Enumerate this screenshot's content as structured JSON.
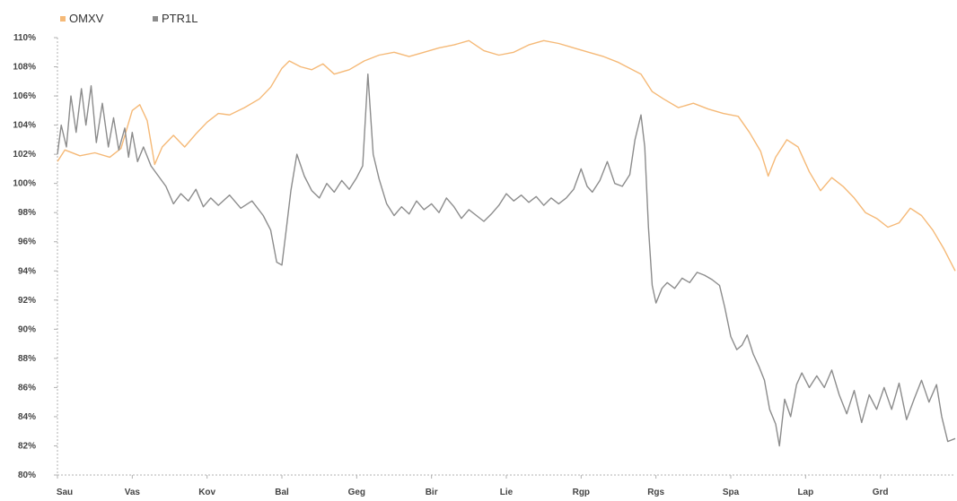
{
  "chart_data": {
    "type": "line",
    "legend_position": "top-left",
    "grid": false,
    "categories": [
      "Sau",
      "Vas",
      "Kov",
      "Bal",
      "Geg",
      "Bir",
      "Lie",
      "Rgp",
      "Rgs",
      "Spa",
      "Lap",
      "Grd"
    ],
    "ylim": [
      80,
      110
    ],
    "yticks": [
      80,
      82,
      84,
      86,
      88,
      90,
      92,
      94,
      96,
      98,
      100,
      102,
      104,
      106,
      108,
      110
    ],
    "ytick_labels": [
      "80%",
      "82%",
      "84%",
      "86%",
      "88%",
      "90%",
      "92%",
      "94%",
      "96%",
      "98%",
      "100%",
      "102%",
      "104%",
      "106%",
      "108%",
      "110%"
    ],
    "x_range": [
      0,
      12
    ],
    "series": [
      {
        "name": "OMXV",
        "color": "#f5b977",
        "points": [
          [
            0.0,
            101.5
          ],
          [
            0.1,
            102.3
          ],
          [
            0.3,
            101.9
          ],
          [
            0.5,
            102.1
          ],
          [
            0.7,
            101.8
          ],
          [
            0.85,
            102.4
          ],
          [
            1.0,
            105.0
          ],
          [
            1.1,
            105.4
          ],
          [
            1.2,
            104.3
          ],
          [
            1.3,
            101.3
          ],
          [
            1.4,
            102.5
          ],
          [
            1.55,
            103.3
          ],
          [
            1.7,
            102.5
          ],
          [
            1.85,
            103.4
          ],
          [
            2.0,
            104.2
          ],
          [
            2.15,
            104.8
          ],
          [
            2.3,
            104.7
          ],
          [
            2.5,
            105.2
          ],
          [
            2.7,
            105.8
          ],
          [
            2.85,
            106.6
          ],
          [
            3.0,
            107.9
          ],
          [
            3.1,
            108.4
          ],
          [
            3.25,
            108.0
          ],
          [
            3.4,
            107.8
          ],
          [
            3.55,
            108.2
          ],
          [
            3.7,
            107.5
          ],
          [
            3.9,
            107.8
          ],
          [
            4.1,
            108.4
          ],
          [
            4.3,
            108.8
          ],
          [
            4.5,
            109.0
          ],
          [
            4.7,
            108.7
          ],
          [
            4.9,
            109.0
          ],
          [
            5.1,
            109.3
          ],
          [
            5.3,
            109.5
          ],
          [
            5.5,
            109.8
          ],
          [
            5.7,
            109.1
          ],
          [
            5.9,
            108.8
          ],
          [
            6.1,
            109.0
          ],
          [
            6.3,
            109.5
          ],
          [
            6.5,
            109.8
          ],
          [
            6.7,
            109.6
          ],
          [
            6.9,
            109.3
          ],
          [
            7.1,
            109.0
          ],
          [
            7.3,
            108.7
          ],
          [
            7.5,
            108.3
          ],
          [
            7.65,
            107.9
          ],
          [
            7.8,
            107.5
          ],
          [
            7.95,
            106.3
          ],
          [
            8.1,
            105.8
          ],
          [
            8.3,
            105.2
          ],
          [
            8.5,
            105.5
          ],
          [
            8.7,
            105.1
          ],
          [
            8.9,
            104.8
          ],
          [
            9.1,
            104.6
          ],
          [
            9.25,
            103.5
          ],
          [
            9.4,
            102.2
          ],
          [
            9.5,
            100.5
          ],
          [
            9.6,
            101.8
          ],
          [
            9.75,
            103.0
          ],
          [
            9.9,
            102.5
          ],
          [
            10.05,
            100.8
          ],
          [
            10.2,
            99.5
          ],
          [
            10.35,
            100.4
          ],
          [
            10.5,
            99.8
          ],
          [
            10.65,
            99.0
          ],
          [
            10.8,
            98.0
          ],
          [
            10.95,
            97.6
          ],
          [
            11.1,
            97.0
          ],
          [
            11.25,
            97.3
          ],
          [
            11.4,
            98.3
          ],
          [
            11.55,
            97.8
          ],
          [
            11.7,
            96.8
          ],
          [
            11.85,
            95.5
          ],
          [
            12.0,
            94.0
          ]
        ]
      },
      {
        "name": "PTR1L",
        "color": "#8c8c8c",
        "points": [
          [
            0.0,
            102.0
          ],
          [
            0.05,
            104.0
          ],
          [
            0.12,
            102.5
          ],
          [
            0.18,
            106.0
          ],
          [
            0.25,
            103.5
          ],
          [
            0.32,
            106.5
          ],
          [
            0.38,
            104.0
          ],
          [
            0.45,
            106.7
          ],
          [
            0.52,
            102.8
          ],
          [
            0.6,
            105.5
          ],
          [
            0.68,
            102.5
          ],
          [
            0.75,
            104.5
          ],
          [
            0.82,
            102.3
          ],
          [
            0.9,
            103.8
          ],
          [
            0.95,
            101.8
          ],
          [
            1.0,
            103.5
          ],
          [
            1.07,
            101.5
          ],
          [
            1.15,
            102.5
          ],
          [
            1.25,
            101.2
          ],
          [
            1.35,
            100.5
          ],
          [
            1.45,
            99.8
          ],
          [
            1.55,
            98.6
          ],
          [
            1.65,
            99.3
          ],
          [
            1.75,
            98.8
          ],
          [
            1.85,
            99.6
          ],
          [
            1.95,
            98.4
          ],
          [
            2.05,
            99.0
          ],
          [
            2.15,
            98.5
          ],
          [
            2.3,
            99.2
          ],
          [
            2.45,
            98.3
          ],
          [
            2.6,
            98.8
          ],
          [
            2.75,
            97.8
          ],
          [
            2.85,
            96.8
          ],
          [
            2.93,
            94.6
          ],
          [
            3.0,
            94.4
          ],
          [
            3.05,
            96.5
          ],
          [
            3.12,
            99.5
          ],
          [
            3.2,
            102.0
          ],
          [
            3.3,
            100.5
          ],
          [
            3.4,
            99.5
          ],
          [
            3.5,
            99.0
          ],
          [
            3.6,
            100.0
          ],
          [
            3.7,
            99.4
          ],
          [
            3.8,
            100.2
          ],
          [
            3.9,
            99.6
          ],
          [
            4.0,
            100.4
          ],
          [
            4.08,
            101.2
          ],
          [
            4.15,
            107.5
          ],
          [
            4.22,
            102.0
          ],
          [
            4.3,
            100.3
          ],
          [
            4.4,
            98.6
          ],
          [
            4.5,
            97.8
          ],
          [
            4.6,
            98.4
          ],
          [
            4.7,
            97.9
          ],
          [
            4.8,
            98.8
          ],
          [
            4.9,
            98.2
          ],
          [
            5.0,
            98.6
          ],
          [
            5.1,
            98.0
          ],
          [
            5.2,
            99.0
          ],
          [
            5.3,
            98.4
          ],
          [
            5.4,
            97.6
          ],
          [
            5.5,
            98.2
          ],
          [
            5.6,
            97.8
          ],
          [
            5.7,
            97.4
          ],
          [
            5.8,
            97.9
          ],
          [
            5.9,
            98.5
          ],
          [
            6.0,
            99.3
          ],
          [
            6.1,
            98.8
          ],
          [
            6.2,
            99.2
          ],
          [
            6.3,
            98.7
          ],
          [
            6.4,
            99.1
          ],
          [
            6.5,
            98.5
          ],
          [
            6.6,
            99.0
          ],
          [
            6.7,
            98.6
          ],
          [
            6.8,
            99.0
          ],
          [
            6.9,
            99.6
          ],
          [
            7.0,
            101.0
          ],
          [
            7.08,
            99.8
          ],
          [
            7.15,
            99.4
          ],
          [
            7.25,
            100.2
          ],
          [
            7.35,
            101.5
          ],
          [
            7.45,
            100.0
          ],
          [
            7.55,
            99.8
          ],
          [
            7.65,
            100.6
          ],
          [
            7.72,
            103.0
          ],
          [
            7.8,
            104.7
          ],
          [
            7.85,
            102.5
          ],
          [
            7.9,
            97.0
          ],
          [
            7.95,
            93.0
          ],
          [
            8.0,
            91.8
          ],
          [
            8.08,
            92.8
          ],
          [
            8.15,
            93.2
          ],
          [
            8.25,
            92.8
          ],
          [
            8.35,
            93.5
          ],
          [
            8.45,
            93.2
          ],
          [
            8.55,
            93.9
          ],
          [
            8.65,
            93.7
          ],
          [
            8.75,
            93.4
          ],
          [
            8.85,
            93.0
          ],
          [
            8.92,
            91.5
          ],
          [
            9.0,
            89.5
          ],
          [
            9.08,
            88.6
          ],
          [
            9.15,
            88.9
          ],
          [
            9.22,
            89.6
          ],
          [
            9.3,
            88.3
          ],
          [
            9.38,
            87.4
          ],
          [
            9.45,
            86.5
          ],
          [
            9.52,
            84.5
          ],
          [
            9.6,
            83.5
          ],
          [
            9.65,
            82.0
          ],
          [
            9.72,
            85.2
          ],
          [
            9.8,
            84.0
          ],
          [
            9.88,
            86.2
          ],
          [
            9.95,
            87.0
          ],
          [
            10.05,
            86.0
          ],
          [
            10.15,
            86.8
          ],
          [
            10.25,
            86.0
          ],
          [
            10.35,
            87.2
          ],
          [
            10.45,
            85.5
          ],
          [
            10.55,
            84.2
          ],
          [
            10.65,
            85.8
          ],
          [
            10.75,
            83.6
          ],
          [
            10.85,
            85.5
          ],
          [
            10.95,
            84.5
          ],
          [
            11.05,
            86.0
          ],
          [
            11.15,
            84.5
          ],
          [
            11.25,
            86.3
          ],
          [
            11.35,
            83.8
          ],
          [
            11.45,
            85.2
          ],
          [
            11.55,
            86.5
          ],
          [
            11.65,
            85.0
          ],
          [
            11.75,
            86.2
          ],
          [
            11.82,
            84.0
          ],
          [
            11.9,
            82.3
          ],
          [
            12.0,
            82.5
          ]
        ]
      }
    ]
  }
}
